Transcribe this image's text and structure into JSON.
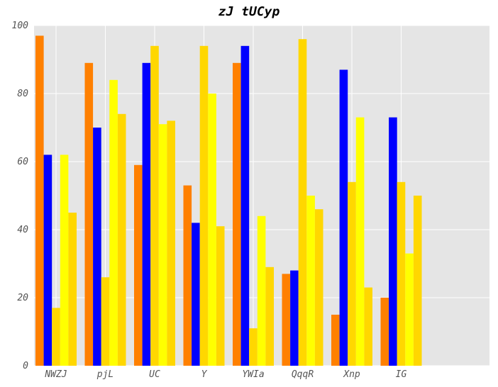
{
  "chart_data": {
    "type": "bar",
    "title": "zJ tUCyp",
    "xlabel": "",
    "ylabel": "",
    "categories": [
      "NWZJ",
      "pjL",
      "UC",
      "Y",
      "YWIa",
      "QqqR",
      "Xnp",
      "IG"
    ],
    "ylim": [
      0,
      100
    ],
    "yticks": [
      "0",
      "20",
      "40",
      "60",
      "80",
      "100"
    ],
    "grid": true,
    "legend": "none",
    "series": [
      {
        "color": "#FF8000",
        "values": [
          97,
          89,
          59,
          53,
          89,
          27,
          15,
          20
        ]
      },
      {
        "color": "#0000FF",
        "values": [
          62,
          70,
          89,
          42,
          94,
          28,
          87,
          73
        ]
      },
      {
        "color": "#FFD700",
        "values": [
          17,
          26,
          94,
          94,
          11,
          96,
          54,
          54
        ]
      },
      {
        "color": "#FFFF00",
        "values": [
          62,
          84,
          71,
          80,
          44,
          50,
          73,
          33
        ]
      },
      {
        "color": "#FFD700",
        "values": [
          45,
          74,
          72,
          41,
          29,
          46,
          23,
          50
        ]
      }
    ],
    "background": "#E5E5E5"
  }
}
